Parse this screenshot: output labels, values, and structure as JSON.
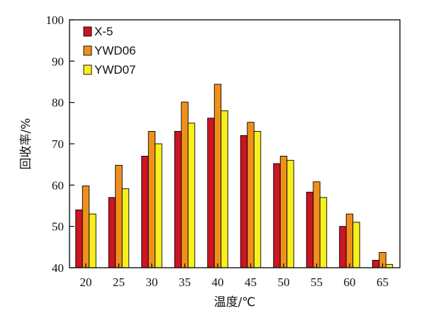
{
  "chart_data": {
    "type": "bar",
    "xlabel": "温度/℃",
    "ylabel": "回收率/%",
    "categories": [
      "20",
      "25",
      "30",
      "35",
      "40",
      "45",
      "50",
      "55",
      "60",
      "65"
    ],
    "ylim": [
      40,
      100
    ],
    "yticks": [
      40,
      50,
      60,
      70,
      80,
      90,
      100
    ],
    "grid": false,
    "legend_position": "top-left",
    "series": [
      {
        "name": "X-5",
        "color": "#cc1423",
        "values": [
          54,
          57,
          67,
          73,
          76.2,
          72,
          65.2,
          58.3,
          50,
          41.8
        ]
      },
      {
        "name": "YWD06",
        "color": "#f0901c",
        "values": [
          59.8,
          64.8,
          73,
          80.1,
          84.4,
          75.2,
          67,
          60.8,
          53,
          43.7
        ]
      },
      {
        "name": "YWD07",
        "color": "#f7f01e",
        "values": [
          53,
          59.1,
          70,
          75,
          78,
          73,
          66,
          57,
          51,
          40.8
        ]
      }
    ]
  }
}
